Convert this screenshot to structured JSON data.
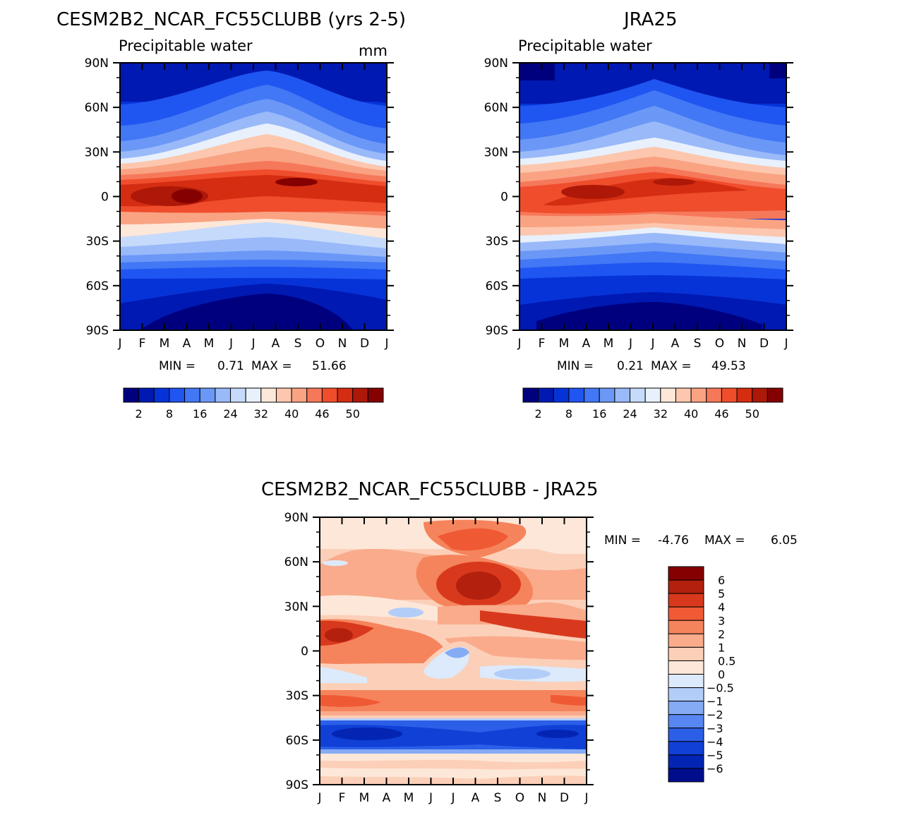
{
  "chart_data": [
    {
      "type": "heatmap",
      "title": "CESM2B2_NCAR_FC55CLUBB (yrs 2-5)",
      "subtitle": "Precipitable water",
      "units": "mm",
      "x": [
        "J",
        "F",
        "M",
        "A",
        "M",
        "J",
        "J",
        "A",
        "S",
        "O",
        "N",
        "D",
        "J"
      ],
      "y": [
        "90N",
        "60N",
        "30N",
        "0",
        "30S",
        "60S",
        "90S"
      ],
      "stats": {
        "min_label": "MIN =",
        "min": "0.71",
        "max_label": "MAX =",
        "max": "51.66"
      },
      "colorbar_labels": [
        "2",
        "8",
        "16",
        "24",
        "32",
        "40",
        "46",
        "50"
      ],
      "colors": [
        "#00007f",
        "#0019b2",
        "#0633d8",
        "#1f55f0",
        "#4277f5",
        "#6b98f7",
        "#99b9f9",
        "#c6dafb",
        "#e8f0fc",
        "#fde7d8",
        "#fcc7ae",
        "#f9a383",
        "#f6785a",
        "#ef4d2c",
        "#d42d12",
        "#ad1808",
        "#850000"
      ]
    },
    {
      "type": "heatmap",
      "title": "JRA25",
      "subtitle": "Precipitable water",
      "x": [
        "J",
        "F",
        "M",
        "A",
        "M",
        "J",
        "J",
        "A",
        "S",
        "O",
        "N",
        "D",
        "J"
      ],
      "y": [
        "90N",
        "60N",
        "30N",
        "0",
        "30S",
        "60S",
        "90S"
      ],
      "stats": {
        "min_label": "MIN =",
        "min": "0.21",
        "max_label": "MAX =",
        "max": "49.53"
      },
      "colorbar_labels": [
        "2",
        "8",
        "16",
        "24",
        "32",
        "40",
        "46",
        "50"
      ],
      "colors": [
        "#00007f",
        "#0019b2",
        "#0633d8",
        "#1f55f0",
        "#4277f5",
        "#6b98f7",
        "#99b9f9",
        "#c6dafb",
        "#e8f0fc",
        "#fde7d8",
        "#fcc7ae",
        "#f9a383",
        "#f6785a",
        "#ef4d2c",
        "#d42d12",
        "#ad1808",
        "#850000"
      ]
    },
    {
      "type": "heatmap",
      "title": "CESM2B2_NCAR_FC55CLUBB - JRA25",
      "x": [
        "J",
        "F",
        "M",
        "A",
        "M",
        "J",
        "J",
        "A",
        "S",
        "O",
        "N",
        "D",
        "J"
      ],
      "y": [
        "90N",
        "60N",
        "30N",
        "0",
        "30S",
        "60S",
        "90S"
      ],
      "stats": {
        "min_label": "MIN =",
        "min": "-4.76",
        "max_label": "MAX =",
        "max": "6.05"
      },
      "colorbar_labels": [
        "6",
        "5",
        "4",
        "3",
        "2",
        "1",
        "0.5",
        "0",
        "-0.5",
        "-1",
        "-2",
        "-3",
        "-4",
        "-5",
        "-6"
      ],
      "colors": [
        "#850000",
        "#b3200e",
        "#d8391c",
        "#ef5a35",
        "#f5845c",
        "#f9ab8b",
        "#fccfb8",
        "#fde7d8",
        "#dceafb",
        "#b3cdf9",
        "#85abf5",
        "#5886f2",
        "#2c5fe8",
        "#1040d6",
        "#0425b3",
        "#000d8c"
      ]
    }
  ]
}
